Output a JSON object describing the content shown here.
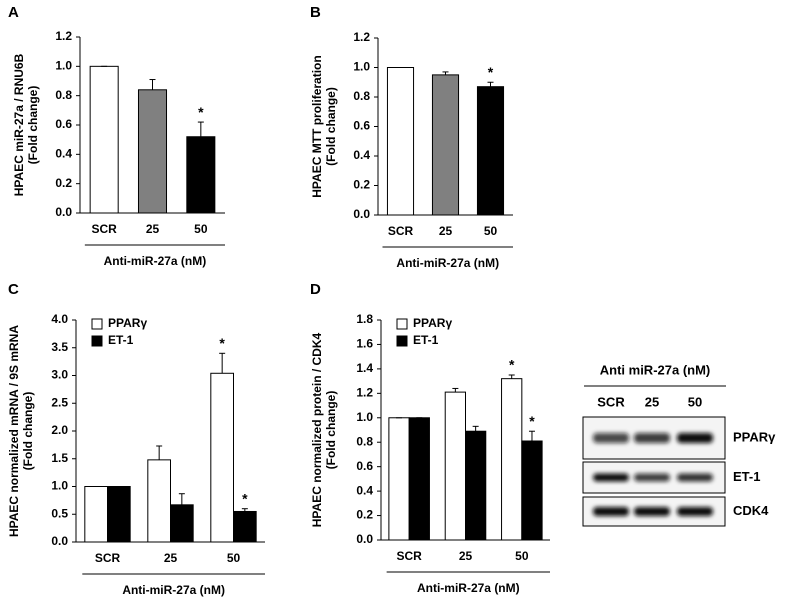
{
  "chart_data": [
    {
      "type": "bar",
      "panel": "A",
      "ylabel": [
        "HPAEC  miR-27a / RNU6B",
        "(Fold change)"
      ],
      "categories": [
        "SCR",
        "25",
        "50"
      ],
      "values": [
        1.0,
        0.84,
        0.52
      ],
      "errors": [
        0,
        0.07,
        0.1
      ],
      "colors": [
        "#ffffff",
        "#808080",
        "#000000"
      ],
      "significance": [
        null,
        null,
        "*"
      ],
      "xlabel": "Anti-miR-27a (nM)",
      "ylim": [
        0,
        1.2
      ],
      "yticks": [
        {
          "value": 0,
          "label": "0.0"
        },
        0.2,
        0.4,
        0.6,
        0.8,
        {
          "value": 1,
          "label": "1.0"
        },
        1.2
      ]
    },
    {
      "type": "bar",
      "panel": "B",
      "ylabel": [
        "HPAEC  MTT proliferation",
        "(Fold change)"
      ],
      "categories": [
        "SCR",
        "25",
        "50"
      ],
      "values": [
        1.0,
        0.95,
        0.87
      ],
      "errors": [
        0,
        0.02,
        0.03
      ],
      "colors": [
        "#ffffff",
        "#808080",
        "#000000"
      ],
      "significance": [
        null,
        null,
        "*"
      ],
      "xlabel": "Anti-miR-27a (nM)",
      "ylim": [
        0,
        1.2
      ],
      "yticks": [
        {
          "value": 0,
          "label": "0.0"
        },
        0.2,
        0.4,
        0.6,
        0.8,
        {
          "value": 1,
          "label": "1.0"
        },
        1.2
      ]
    },
    {
      "type": "grouped-bar",
      "panel": "C",
      "ylabel": [
        "HPAEC  normalized mRNA / 9S mRNA",
        "(Fold change)"
      ],
      "categories": [
        "SCR",
        "25",
        "50"
      ],
      "xlabel": "Anti-miR-27a (nM)",
      "series": [
        {
          "name": "PPARγ",
          "color": "#ffffff",
          "values": [
            1.0,
            1.48,
            3.04
          ],
          "errors": [
            0,
            0.25,
            0.36
          ],
          "significance": [
            null,
            null,
            "*"
          ]
        },
        {
          "name": "ET-1",
          "color": "#000000",
          "values": [
            1.0,
            0.67,
            0.55
          ],
          "errors": [
            0,
            0.2,
            0.05
          ],
          "significance": [
            null,
            null,
            "*"
          ]
        }
      ],
      "ylim": [
        0,
        4
      ],
      "yticks": [
        {
          "value": 0,
          "label": "0.0"
        },
        0.5,
        {
          "value": 1,
          "label": "1.0"
        },
        1.5,
        {
          "value": 2,
          "label": "2.0"
        },
        2.5,
        {
          "value": 3,
          "label": "3.0"
        },
        3.5,
        {
          "value": 4,
          "label": "4.0"
        }
      ]
    },
    {
      "type": "grouped-bar",
      "panel": "D",
      "ylabel": [
        "HPAEC normalized protein / CDK4",
        "(Fold change)"
      ],
      "categories": [
        "SCR",
        "25",
        "50"
      ],
      "xlabel": "Anti-miR-27a (nM)",
      "series": [
        {
          "name": "PPARγ",
          "color": "#ffffff",
          "values": [
            1.0,
            1.21,
            1.32
          ],
          "errors": [
            0,
            0.03,
            0.03
          ],
          "significance": [
            null,
            null,
            "*"
          ]
        },
        {
          "name": "ET-1",
          "color": "#000000",
          "values": [
            1.0,
            0.89,
            0.81
          ],
          "errors": [
            0,
            0.04,
            0.08
          ],
          "significance": [
            null,
            null,
            "*"
          ]
        }
      ],
      "ylim": [
        0,
        1.8
      ],
      "yticks": [
        {
          "value": 0,
          "label": "0.0"
        },
        0.2,
        0.4,
        0.6,
        0.8,
        {
          "value": 1,
          "label": "1.0"
        },
        1.2,
        1.4,
        1.6,
        1.8
      ]
    }
  ],
  "blot": {
    "title": "Anti miR-27a (nM)",
    "lanes": [
      "SCR",
      "25",
      "50"
    ],
    "rows": [
      "PPARγ",
      "ET-1",
      "CDK4"
    ]
  }
}
